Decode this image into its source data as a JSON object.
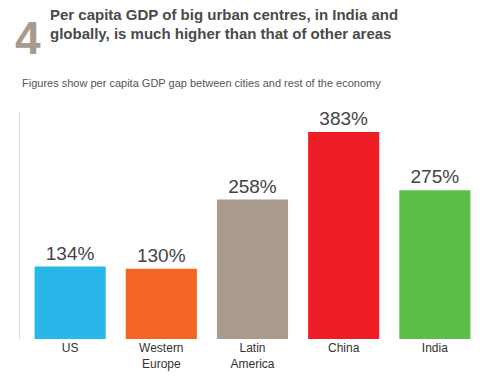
{
  "chart_data": {
    "type": "bar",
    "title": "Per capita GDP of big urban centres, in India and globally, is much higher than that of other areas",
    "subtitle": "Figures show per capita GDP gap between cities and rest of the economy",
    "annotations": [
      "4"
    ],
    "categories": [
      "US",
      "Western Europe",
      "Latin America",
      "China",
      "India"
    ],
    "values": [
      134,
      130,
      258,
      383,
      275
    ],
    "value_labels": [
      "134%",
      "130%",
      "258%",
      "383%",
      "275%"
    ],
    "colors": [
      "#29b6e8",
      "#f26522",
      "#a89a8c",
      "#ee1c25",
      "#5cbf4a"
    ],
    "ylim": [
      0,
      420
    ],
    "data_labels": true,
    "tick_labels": "x",
    "grid": false
  }
}
